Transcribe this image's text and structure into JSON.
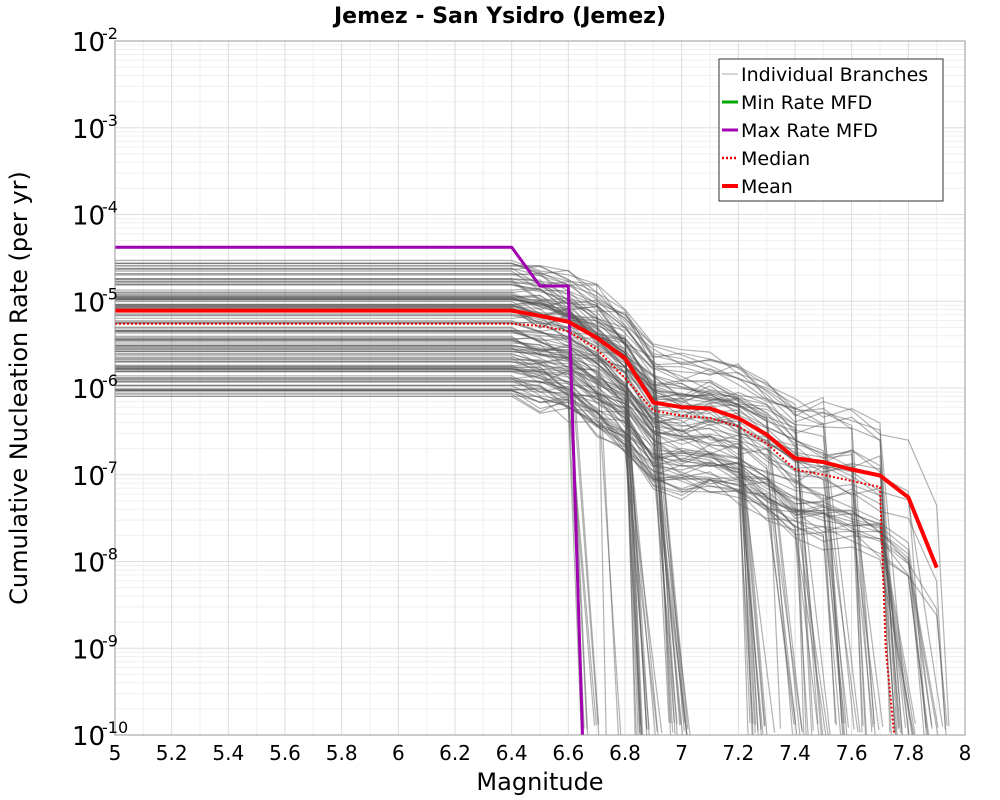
{
  "chart_data": {
    "type": "line",
    "title": "Jemez - San Ysidro (Jemez)",
    "xlabel": "Magnitude",
    "ylabel": "Cumulative Nucleation Rate (per yr)",
    "xlim": [
      5,
      8
    ],
    "ylim_log10": [
      -10,
      -2
    ],
    "yscale": "log",
    "grid": true,
    "x_ticks": [
      "5",
      "5.2",
      "5.4",
      "5.6",
      "5.8",
      "6",
      "6.2",
      "6.4",
      "6.6",
      "6.8",
      "7",
      "7.2",
      "7.4",
      "7.6",
      "7.8",
      "8"
    ],
    "y_ticks": [
      {
        "base": "10",
        "exp": "-2"
      },
      {
        "base": "10",
        "exp": "-3"
      },
      {
        "base": "10",
        "exp": "-4"
      },
      {
        "base": "10",
        "exp": "-5"
      },
      {
        "base": "10",
        "exp": "-6"
      },
      {
        "base": "10",
        "exp": "-7"
      },
      {
        "base": "10",
        "exp": "-8"
      },
      {
        "base": "10",
        "exp": "-9"
      },
      {
        "base": "10",
        "exp": "-10"
      }
    ],
    "legend": {
      "position": "top-right",
      "entries": [
        {
          "label": "Individual Branches",
          "color": "#aaaaaa",
          "style": "thin"
        },
        {
          "label": "Min Rate MFD",
          "color": "#00aa00",
          "style": "solid"
        },
        {
          "label": "Max Rate MFD",
          "color": "#a000b0",
          "style": "solid"
        },
        {
          "label": "Median",
          "color": "#ee0000",
          "style": "dotted"
        },
        {
          "label": "Mean",
          "color": "#ff0000",
          "style": "thick"
        }
      ]
    },
    "series": [
      {
        "name": "Max Rate MFD",
        "color": "#a000b0",
        "x": [
          5,
          6.4,
          6.5,
          6.6,
          6.65
        ],
        "y": [
          4.2e-05,
          4.2e-05,
          1.5e-05,
          1.5e-05,
          1e-10
        ]
      },
      {
        "name": "Mean",
        "color": "#ff0000",
        "x": [
          5,
          6.4,
          6.5,
          6.6,
          6.7,
          6.8,
          6.9,
          7.0,
          7.1,
          7.2,
          7.3,
          7.4,
          7.5,
          7.6,
          7.7,
          7.8,
          7.9
        ],
        "y": [
          7.8e-06,
          7.8e-06,
          6.8e-06,
          5.8e-06,
          3.8e-06,
          2.2e-06,
          6.8e-07,
          6e-07,
          5.8e-07,
          4.5e-07,
          2.9e-07,
          1.55e-07,
          1.4e-07,
          1.15e-07,
          9.8e-08,
          5.5e-08,
          8.5e-09
        ]
      },
      {
        "name": "Median",
        "color": "#ee0000",
        "x": [
          5,
          6.4,
          6.5,
          6.6,
          6.7,
          6.8,
          6.9,
          7.0,
          7.1,
          7.2,
          7.3,
          7.4,
          7.5,
          7.6,
          7.7,
          7.72,
          7.75
        ],
        "y": [
          5.5e-06,
          5.5e-06,
          5.2e-06,
          4.5e-06,
          2.8e-06,
          1.3e-06,
          5.5e-07,
          4.8e-07,
          4.5e-07,
          3.6e-07,
          2.3e-07,
          1.15e-07,
          1e-07,
          8.5e-08,
          7.2e-08,
          1e-09,
          1e-10
        ]
      }
    ],
    "individual_branches": {
      "color": "#555555",
      "count": 140,
      "plateau_range": [
        8e-07,
        3e-05
      ],
      "note": "Many logic-tree branch MFDs, each flat at low magnitude then dropping to zero at a branch-specific maximum magnitude between 6.6 and 7.9"
    }
  }
}
